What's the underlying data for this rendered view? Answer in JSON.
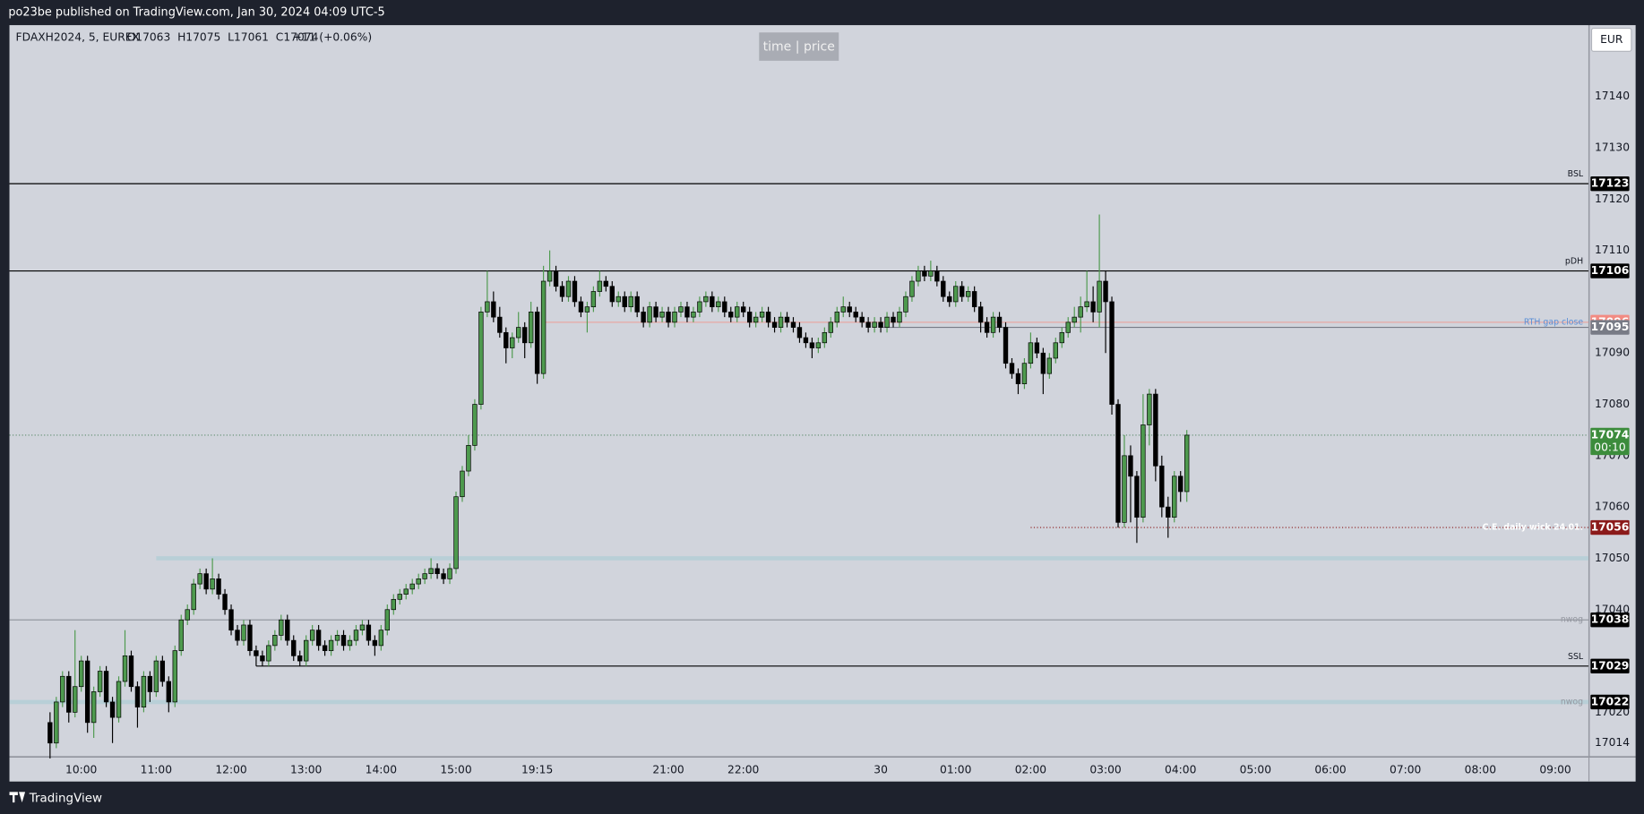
{
  "header": {
    "publisher": "po23be published on TradingView.com, Jan 30, 2024 04:09 UTC-5",
    "brand": "TradingView"
  },
  "chart_data": {
    "type": "candlestick",
    "title": "FDAXH2024, 5, EUREX",
    "legend_text": "O17063  H17075  L17061  C17074",
    "change": "+11 (+0.06%)",
    "badge": "time | price",
    "currency": "EUR",
    "up_color": "#4e9a4e",
    "down_color": "#000000",
    "border_color": "#000000",
    "xlim": [
      -6.5,
      246.3
    ],
    "ylim": [
      17011.4,
      17153.9
    ],
    "yticks": [
      17014,
      17020,
      17040,
      17050,
      17060,
      17070,
      17080,
      17090,
      17110,
      17120,
      17130,
      17140
    ],
    "xticks": [
      {
        "value": 5,
        "label": "10:00"
      },
      {
        "value": 17,
        "label": "11:00"
      },
      {
        "value": 29,
        "label": "12:00"
      },
      {
        "value": 41,
        "label": "13:00"
      },
      {
        "value": 53,
        "label": "14:00"
      },
      {
        "value": 65,
        "label": "15:00"
      },
      {
        "value": 78,
        "label": "19:15"
      },
      {
        "value": 99,
        "label": "21:00"
      },
      {
        "value": 111,
        "label": "22:00"
      },
      {
        "value": 133,
        "label": "30"
      },
      {
        "value": 145,
        "label": "01:00"
      },
      {
        "value": 157,
        "label": "02:00"
      },
      {
        "value": 169,
        "label": "03:00"
      },
      {
        "value": 181,
        "label": "04:00"
      },
      {
        "value": 193,
        "label": "05:00"
      },
      {
        "value": 205,
        "label": "06:00"
      },
      {
        "value": 217,
        "label": "07:00"
      },
      {
        "value": 229,
        "label": "08:00"
      },
      {
        "value": 241,
        "label": "09:00"
      }
    ],
    "levels": [
      {
        "value": 17123,
        "text": "BSL",
        "color": "#000000",
        "tag_color": "#000000",
        "kind": "line"
      },
      {
        "value": 17106,
        "text": "pDH",
        "color": "#000000",
        "tag_color": "#000000",
        "kind": "line"
      },
      {
        "value": 17096,
        "text": "RTH gap close",
        "text_color": "#5b8fd6",
        "color": "#e8a8a4",
        "tag_color": "#f28b82",
        "kind": "line",
        "start": 79
      },
      {
        "value": 17095,
        "color": "#787b86",
        "tag_color": "#787b86",
        "kind": "line",
        "start": 133
      },
      {
        "value": 17074,
        "countdown": "00:10",
        "color": "#5a8a6a",
        "tag_color": "#3c8c3c",
        "kind": "dotted"
      },
      {
        "value": 17056,
        "text": "C.E. daily wick 24.01.",
        "text_color": "#ffffff",
        "color": "#8b1a1a",
        "tag_color": "#8b1a1a",
        "kind": "dotted",
        "start": 157
      },
      {
        "value": 17050,
        "color": "#b2cdd6",
        "kind": "zone",
        "start": 17
      },
      {
        "value": 17038,
        "text": "nwog",
        "text_color": "#9598a1",
        "color": "#9598a1",
        "tag_color": "#000000",
        "kind": "line"
      },
      {
        "value": 17029,
        "text": "SSL",
        "color": "#000000",
        "tag_color": "#000000",
        "kind": "line",
        "start": 33
      },
      {
        "value": 17022,
        "text": "nwog",
        "text_color": "#9598a1",
        "color": "#b2cdd6",
        "tag_color": "#000000",
        "kind": "zone"
      }
    ],
    "candles": [
      [
        17018,
        17020,
        17011,
        17014
      ],
      [
        17014,
        17023,
        17013,
        17022
      ],
      [
        17022,
        17028,
        17021,
        17027
      ],
      [
        17027,
        17028,
        17018,
        17020
      ],
      [
        17020,
        17036,
        17019,
        17025
      ],
      [
        17025,
        17031,
        17024,
        17030
      ],
      [
        17030,
        17031,
        17016,
        17018
      ],
      [
        17018,
        17025,
        17015,
        17024
      ],
      [
        17024,
        17029,
        17023,
        17028
      ],
      [
        17028,
        17029,
        17021,
        17022
      ],
      [
        17022,
        17023,
        17014,
        17019
      ],
      [
        17019,
        17027,
        17018,
        17026
      ],
      [
        17026,
        17036,
        17025,
        17031
      ],
      [
        17031,
        17032,
        17024,
        17025
      ],
      [
        17025,
        17026,
        17017,
        17021
      ],
      [
        17021,
        17028,
        17020,
        17027
      ],
      [
        17027,
        17028,
        17022,
        17024
      ],
      [
        17024,
        17031,
        17023,
        17030
      ],
      [
        17030,
        17031,
        17025,
        17026
      ],
      [
        17026,
        17027,
        17020,
        17022
      ],
      [
        17022,
        17033,
        17021,
        17032
      ],
      [
        17032,
        17039,
        17031,
        17038
      ],
      [
        17038,
        17041,
        17037,
        17040
      ],
      [
        17040,
        17046,
        17039,
        17045
      ],
      [
        17045,
        17048,
        17044,
        17047
      ],
      [
        17047,
        17048,
        17043,
        17044
      ],
      [
        17044,
        17050,
        17043,
        17046
      ],
      [
        17046,
        17047,
        17042,
        17043
      ],
      [
        17043,
        17044,
        17039,
        17040
      ],
      [
        17040,
        17041,
        17035,
        17036
      ],
      [
        17036,
        17037,
        17033,
        17034
      ],
      [
        17034,
        17038,
        17033,
        17037
      ],
      [
        17037,
        17038,
        17031,
        17032
      ],
      [
        17032,
        17033,
        17029,
        17031
      ],
      [
        17031,
        17032,
        17029,
        17030
      ],
      [
        17030,
        17034,
        17029,
        17033
      ],
      [
        17033,
        17036,
        17032,
        17035
      ],
      [
        17035,
        17039,
        17034,
        17038
      ],
      [
        17038,
        17039,
        17033,
        17034
      ],
      [
        17034,
        17035,
        17030,
        17031
      ],
      [
        17031,
        17032,
        17029,
        17030
      ],
      [
        17030,
        17035,
        17029,
        17034
      ],
      [
        17034,
        17037,
        17033,
        17036
      ],
      [
        17036,
        17037,
        17032,
        17033
      ],
      [
        17033,
        17034,
        17031,
        17032
      ],
      [
        17032,
        17035,
        17031,
        17034
      ],
      [
        17034,
        17036,
        17033,
        17035
      ],
      [
        17035,
        17036,
        17032,
        17033
      ],
      [
        17033,
        17035,
        17032,
        17034
      ],
      [
        17034,
        17037,
        17033,
        17036
      ],
      [
        17036,
        17038,
        17035,
        17037
      ],
      [
        17037,
        17038,
        17033,
        17034
      ],
      [
        17034,
        17035,
        17031,
        17033
      ],
      [
        17033,
        17037,
        17032,
        17036
      ],
      [
        17036,
        17041,
        17035,
        17040
      ],
      [
        17040,
        17043,
        17039,
        17042
      ],
      [
        17042,
        17044,
        17041,
        17043
      ],
      [
        17043,
        17045,
        17042,
        17044
      ],
      [
        17044,
        17046,
        17043,
        17045
      ],
      [
        17045,
        17047,
        17044,
        17046
      ],
      [
        17046,
        17048,
        17045,
        17047
      ],
      [
        17047,
        17050,
        17046,
        17048
      ],
      [
        17048,
        17049,
        17046,
        17047
      ],
      [
        17047,
        17048,
        17045,
        17046
      ],
      [
        17046,
        17049,
        17045,
        17048
      ],
      [
        17048,
        17063,
        17047,
        17062
      ],
      [
        17062,
        17068,
        17061,
        17067
      ],
      [
        17067,
        17074,
        17066,
        17072
      ],
      [
        17072,
        17081,
        17071,
        17080
      ],
      [
        17080,
        17099,
        17079,
        17098
      ],
      [
        17098,
        17106,
        17097,
        17100
      ],
      [
        17100,
        17102,
        17096,
        17097
      ],
      [
        17097,
        17099,
        17093,
        17094
      ],
      [
        17094,
        17095,
        17088,
        17091
      ],
      [
        17091,
        17094,
        17089,
        17093
      ],
      [
        17093,
        17098,
        17092,
        17095
      ],
      [
        17095,
        17096,
        17089,
        17092
      ],
      [
        17092,
        17100,
        17091,
        17098
      ],
      [
        17098,
        17099,
        17084,
        17086
      ],
      [
        17086,
        17107,
        17085,
        17104
      ],
      [
        17104,
        17110,
        17103,
        17106
      ],
      [
        17106,
        17107,
        17102,
        17103
      ],
      [
        17103,
        17104,
        17100,
        17101
      ],
      [
        17101,
        17105,
        17100,
        17104
      ],
      [
        17104,
        17105,
        17099,
        17100
      ],
      [
        17100,
        17101,
        17097,
        17098
      ],
      [
        17098,
        17100,
        17094,
        17099
      ],
      [
        17099,
        17103,
        17098,
        17102
      ],
      [
        17102,
        17106,
        17101,
        17104
      ],
      [
        17104,
        17105,
        17102,
        17103
      ],
      [
        17103,
        17104,
        17099,
        17100
      ],
      [
        17100,
        17102,
        17099,
        17101
      ],
      [
        17101,
        17102,
        17098,
        17099
      ],
      [
        17099,
        17102,
        17098,
        17101
      ],
      [
        17101,
        17102,
        17097,
        17098
      ],
      [
        17098,
        17099,
        17095,
        17096
      ],
      [
        17096,
        17100,
        17095,
        17099
      ],
      [
        17099,
        17100,
        17096,
        17097
      ],
      [
        17097,
        17099,
        17096,
        17098
      ],
      [
        17098,
        17099,
        17095,
        17096
      ],
      [
        17096,
        17099,
        17095,
        17098
      ],
      [
        17098,
        17100,
        17097,
        17099
      ],
      [
        17099,
        17100,
        17096,
        17097
      ],
      [
        17097,
        17099,
        17096,
        17098
      ],
      [
        17098,
        17101,
        17097,
        17100
      ],
      [
        17100,
        17102,
        17099,
        17101
      ],
      [
        17101,
        17102,
        17098,
        17099
      ],
      [
        17099,
        17101,
        17098,
        17100
      ],
      [
        17100,
        17101,
        17097,
        17098
      ],
      [
        17098,
        17099,
        17096,
        17097
      ],
      [
        17097,
        17100,
        17096,
        17099
      ],
      [
        17099,
        17100,
        17097,
        17098
      ],
      [
        17098,
        17099,
        17095,
        17096
      ],
      [
        17096,
        17098,
        17095,
        17097
      ],
      [
        17097,
        17099,
        17096,
        17098
      ],
      [
        17098,
        17099,
        17095,
        17096
      ],
      [
        17096,
        17097,
        17094,
        17095
      ],
      [
        17095,
        17098,
        17094,
        17097
      ],
      [
        17097,
        17098,
        17095,
        17096
      ],
      [
        17096,
        17097,
        17094,
        17095
      ],
      [
        17095,
        17096,
        17092,
        17093
      ],
      [
        17093,
        17094,
        17091,
        17092
      ],
      [
        17092,
        17093,
        17089,
        17091
      ],
      [
        17091,
        17093,
        17090,
        17092
      ],
      [
        17092,
        17095,
        17091,
        17094
      ],
      [
        17094,
        17097,
        17093,
        17096
      ],
      [
        17096,
        17099,
        17095,
        17098
      ],
      [
        17098,
        17101,
        17097,
        17099
      ],
      [
        17099,
        17100,
        17097,
        17098
      ],
      [
        17098,
        17099,
        17096,
        17097
      ],
      [
        17097,
        17098,
        17095,
        17096
      ],
      [
        17096,
        17097,
        17094,
        17095
      ],
      [
        17095,
        17097,
        17094,
        17096
      ],
      [
        17096,
        17097,
        17094,
        17095
      ],
      [
        17095,
        17098,
        17094,
        17097
      ],
      [
        17097,
        17098,
        17095,
        17096
      ],
      [
        17096,
        17099,
        17095,
        17098
      ],
      [
        17098,
        17102,
        17097,
        17101
      ],
      [
        17101,
        17105,
        17100,
        17104
      ],
      [
        17104,
        17107,
        17103,
        17106
      ],
      [
        17106,
        17107,
        17104,
        17105
      ],
      [
        17105,
        17108,
        17104,
        17106
      ],
      [
        17106,
        17107,
        17103,
        17104
      ],
      [
        17104,
        17105,
        17100,
        17101
      ],
      [
        17101,
        17102,
        17099,
        17100
      ],
      [
        17100,
        17104,
        17099,
        17103
      ],
      [
        17103,
        17104,
        17100,
        17101
      ],
      [
        17101,
        17103,
        17100,
        17102
      ],
      [
        17102,
        17103,
        17098,
        17099
      ],
      [
        17099,
        17100,
        17094,
        17096
      ],
      [
        17096,
        17097,
        17093,
        17094
      ],
      [
        17094,
        17098,
        17093,
        17097
      ],
      [
        17097,
        17098,
        17094,
        17095
      ],
      [
        17095,
        17096,
        17087,
        17088
      ],
      [
        17088,
        17089,
        17085,
        17086
      ],
      [
        17086,
        17087,
        17082,
        17084
      ],
      [
        17084,
        17089,
        17083,
        17088
      ],
      [
        17088,
        17094,
        17087,
        17092
      ],
      [
        17092,
        17093,
        17089,
        17090
      ],
      [
        17090,
        17091,
        17082,
        17086
      ],
      [
        17086,
        17090,
        17085,
        17089
      ],
      [
        17089,
        17093,
        17088,
        17092
      ],
      [
        17092,
        17095,
        17091,
        17094
      ],
      [
        17094,
        17097,
        17093,
        17096
      ],
      [
        17096,
        17099,
        17095,
        17097
      ],
      [
        17097,
        17101,
        17094,
        17099
      ],
      [
        17099,
        17106,
        17098,
        17100
      ],
      [
        17100,
        17103,
        17096,
        17098
      ],
      [
        17098,
        17117,
        17095,
        17104
      ],
      [
        17104,
        17106,
        17090,
        17100
      ],
      [
        17100,
        17101,
        17078,
        17080
      ],
      [
        17080,
        17081,
        17056,
        17057
      ],
      [
        17057,
        17074,
        17056,
        17070
      ],
      [
        17070,
        17072,
        17057,
        17066
      ],
      [
        17066,
        17067,
        17053,
        17058
      ],
      [
        17058,
        17082,
        17057,
        17076
      ],
      [
        17076,
        17083,
        17072,
        17082
      ],
      [
        17082,
        17083,
        17065,
        17068
      ],
      [
        17068,
        17070,
        17058,
        17060
      ],
      [
        17060,
        17062,
        17054,
        17058
      ],
      [
        17058,
        17067,
        17057,
        17066
      ],
      [
        17066,
        17067,
        17061,
        17063
      ],
      [
        17063,
        17075,
        17061,
        17074
      ]
    ]
  }
}
